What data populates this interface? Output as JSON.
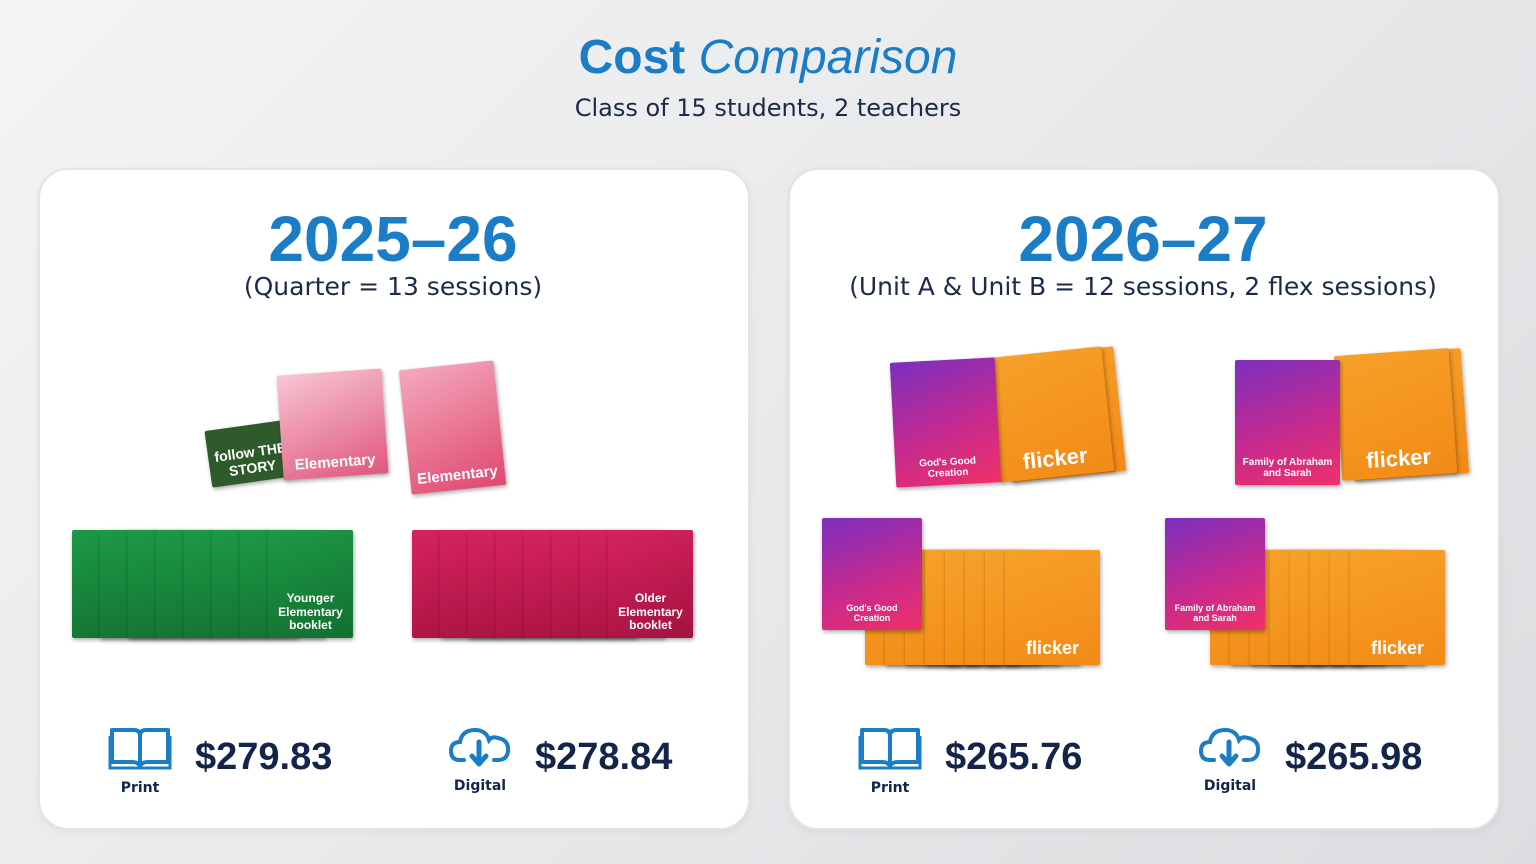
{
  "header": {
    "title_bold": "Cost",
    "title_italic": "Comparison",
    "subtitle": "Class of 15 students, 2 teachers"
  },
  "panels": [
    {
      "year": "2025–26",
      "note": "(Quarter = 13 sessions)",
      "covers": [
        "follow THE STORY",
        "Elementary",
        "Elementary",
        "Younger Elementary booklet",
        "Older Elementary booklet"
      ],
      "prices": [
        {
          "label": "Print",
          "amount": "$279.83"
        },
        {
          "label": "Digital",
          "amount": "$278.84"
        }
      ]
    },
    {
      "year": "2026–27",
      "note": "(Unit A & Unit B = 12 sessions, 2 flex sessions)",
      "covers": [
        "flicker",
        "God's Good Creation",
        "flicker",
        "God's Good Creation",
        "flicker",
        "Family of Abraham and Sarah",
        "flicker",
        "Family of Abraham and Sarah"
      ],
      "prices": [
        {
          "label": "Print",
          "amount": "$265.76"
        },
        {
          "label": "Digital",
          "amount": "$265.98"
        }
      ]
    }
  ]
}
